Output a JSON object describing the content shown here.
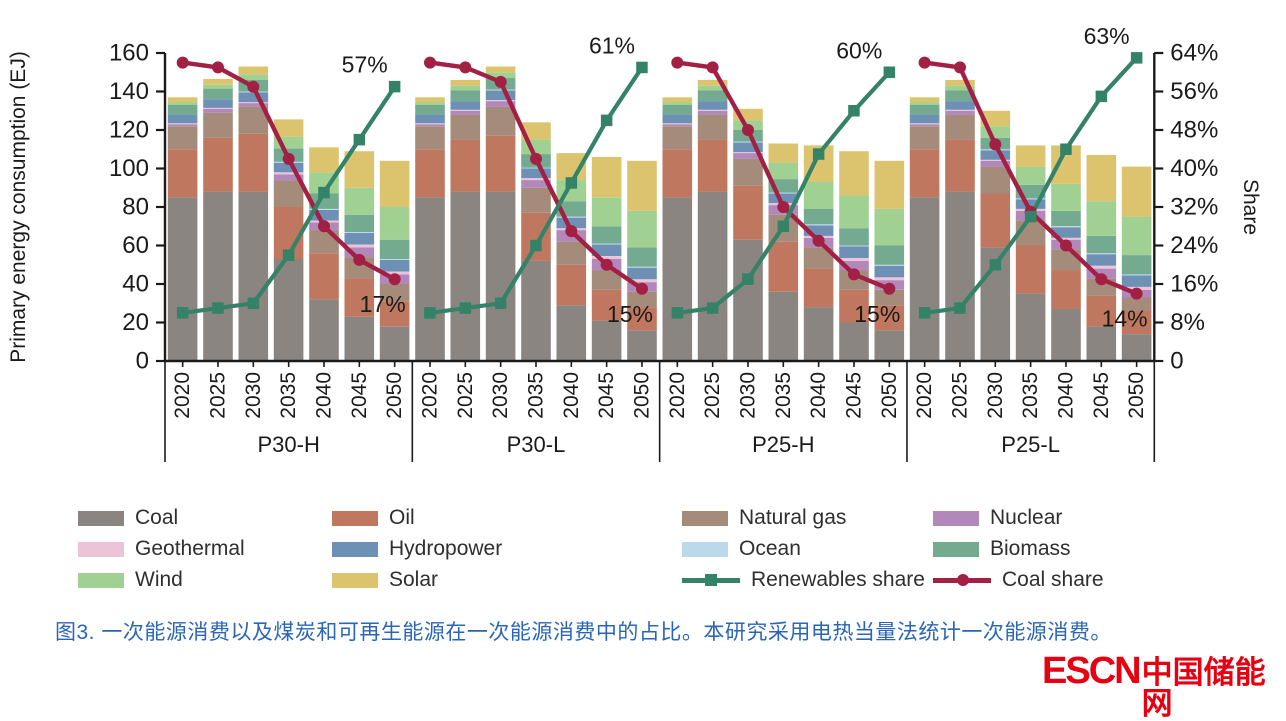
{
  "chart_data": {
    "type": "bar",
    "variant": "stacked-bars-with-dual-axis-share-lines",
    "title": "",
    "ylabel": "Primary energy consumption (EJ)",
    "y2label": "Share",
    "ylim": [
      0,
      160
    ],
    "y2lim": [
      0,
      64
    ],
    "y_ticks": [
      0,
      20,
      40,
      60,
      80,
      100,
      120,
      140,
      160
    ],
    "y2_tick_labels": [
      "0",
      "8%",
      "16%",
      "24%",
      "32%",
      "40%",
      "48%",
      "56%",
      "64%"
    ],
    "grid": false,
    "categories_years": [
      "2020",
      "2025",
      "2030",
      "2035",
      "2040",
      "2045",
      "2050"
    ],
    "series_order": [
      "Coal",
      "Oil",
      "Natural gas",
      "Nuclear",
      "Geothermal",
      "Hydropower",
      "Ocean",
      "Biomass",
      "Wind",
      "Solar"
    ],
    "units": "EJ",
    "groups": [
      {
        "name": "P30-H",
        "values": [
          [
            85,
            88,
            88,
            53,
            32,
            23,
            18
          ],
          [
            25,
            28,
            30,
            27,
            24,
            20,
            13
          ],
          [
            12,
            13,
            14,
            14,
            12,
            11,
            9
          ],
          [
            1,
            2,
            2,
            3,
            4,
            5,
            5
          ],
          [
            0.5,
            0.5,
            0.5,
            1,
            1,
            1.5,
            1.5
          ],
          [
            4.5,
            4.5,
            5,
            5,
            5.5,
            6,
            6
          ],
          [
            0,
            0,
            0.5,
            0.5,
            0.5,
            0.5,
            0.5
          ],
          [
            5,
            5.5,
            6,
            7,
            8,
            9,
            10
          ],
          [
            1.5,
            2,
            3,
            6,
            11,
            14,
            17
          ],
          [
            2.5,
            3,
            4,
            9,
            13,
            19,
            24
          ]
        ],
        "renewables_share_pct": [
          10,
          11,
          12,
          22,
          35,
          46,
          57
        ],
        "coal_share_pct": [
          62,
          61,
          57,
          42,
          28,
          21,
          17
        ],
        "end_labels": {
          "renewables": "57%",
          "coal": "17%"
        }
      },
      {
        "name": "P30-L",
        "values": [
          [
            85,
            88,
            88,
            52,
            29,
            21,
            16
          ],
          [
            25,
            27,
            29,
            25,
            21,
            16,
            12
          ],
          [
            12,
            13,
            15,
            13,
            12,
            10,
            8
          ],
          [
            1,
            2,
            3,
            4,
            6,
            6,
            5
          ],
          [
            0.5,
            0.5,
            0.5,
            1,
            1,
            1.5,
            1.5
          ],
          [
            4.5,
            4.5,
            5,
            5,
            5.5,
            6,
            6
          ],
          [
            0,
            0,
            0.5,
            0.5,
            0.5,
            0.5,
            0.5
          ],
          [
            5,
            5.5,
            6,
            7,
            8,
            9,
            10
          ],
          [
            1.5,
            2.5,
            3,
            7.5,
            11,
            15,
            19
          ],
          [
            2.5,
            3,
            3,
            9,
            14,
            21,
            26
          ]
        ],
        "renewables_share_pct": [
          10,
          11,
          12,
          24,
          37,
          50,
          61
        ],
        "coal_share_pct": [
          62,
          61,
          58,
          42,
          27,
          20,
          15
        ],
        "end_labels": {
          "renewables": "61%",
          "coal": "15%"
        }
      },
      {
        "name": "P25-H",
        "values": [
          [
            85,
            88,
            63,
            36,
            28,
            20,
            16
          ],
          [
            25,
            27,
            28,
            26,
            20,
            17,
            13
          ],
          [
            12,
            13,
            14,
            14,
            11,
            10,
            8
          ],
          [
            1,
            2,
            3,
            5,
            5,
            5,
            5
          ],
          [
            0.5,
            0.5,
            0.5,
            1,
            1,
            1.5,
            1.5
          ],
          [
            4.5,
            4.5,
            5,
            5,
            5.5,
            6,
            6
          ],
          [
            0,
            0,
            0.5,
            0.5,
            0.5,
            0.5,
            0.5
          ],
          [
            5,
            5.5,
            6,
            7,
            8,
            9,
            10
          ],
          [
            1.5,
            2.5,
            5,
            8.5,
            14,
            17,
            19
          ],
          [
            2.5,
            3,
            6,
            10,
            19,
            23,
            25
          ]
        ],
        "renewables_share_pct": [
          10,
          11,
          17,
          28,
          43,
          52,
          60
        ],
        "coal_share_pct": [
          62,
          61,
          48,
          32,
          25,
          18,
          15
        ],
        "end_labels": {
          "renewables": "60%",
          "coal": "15%"
        }
      },
      {
        "name": "P25-L",
        "values": [
          [
            85,
            88,
            59,
            35,
            27,
            18,
            14
          ],
          [
            25,
            27,
            28,
            25,
            20,
            16,
            12
          ],
          [
            12,
            13,
            14,
            13,
            11,
            9,
            7
          ],
          [
            1,
            2,
            3,
            5,
            5,
            5,
            4
          ],
          [
            0.5,
            0.5,
            0.5,
            1,
            1,
            1.5,
            1.5
          ],
          [
            4.5,
            4.5,
            5,
            5,
            5.5,
            6,
            6
          ],
          [
            0,
            0,
            0.5,
            0.5,
            0.5,
            0.5,
            0.5
          ],
          [
            5,
            5.5,
            6,
            7,
            8,
            9,
            10
          ],
          [
            1.5,
            2.5,
            6,
            9.5,
            14,
            18,
            20
          ],
          [
            2.5,
            3,
            8,
            11,
            20,
            24,
            26
          ]
        ],
        "renewables_share_pct": [
          10,
          11,
          20,
          30,
          44,
          55,
          63
        ],
        "coal_share_pct": [
          62,
          61,
          45,
          31,
          24,
          17,
          14
        ],
        "end_labels": {
          "renewables": "63%",
          "coal": "14%"
        }
      }
    ]
  },
  "colors": {
    "Coal": "#8B8582",
    "Oil": "#C0775F",
    "Natural gas": "#A58B7A",
    "Nuclear": "#B287B9",
    "Geothermal": "#EBC4D7",
    "Hydropower": "#6E90B5",
    "Ocean": "#BCD9E9",
    "Biomass": "#74AA90",
    "Wind": "#A0D192",
    "Solar": "#DCC46F",
    "renewables_line": "#348268",
    "coal_line": "#A32045",
    "axis": "#1a1a1a",
    "annotation": "#2b2b2b",
    "caption": "#2a66b8",
    "logo": "#e60012"
  },
  "legend": {
    "items": [
      {
        "label": "Coal",
        "type": "rect",
        "color_key": "Coal",
        "col": 0,
        "row": 0
      },
      {
        "label": "Oil",
        "type": "rect",
        "color_key": "Oil",
        "col": 1,
        "row": 0
      },
      {
        "label": "Natural gas",
        "type": "rect",
        "color_key": "Natural gas",
        "col": 2,
        "row": 0
      },
      {
        "label": "Nuclear",
        "type": "rect",
        "color_key": "Nuclear",
        "col": 3,
        "row": 0
      },
      {
        "label": "Geothermal",
        "type": "rect",
        "color_key": "Geothermal",
        "col": 0,
        "row": 1
      },
      {
        "label": "Hydropower",
        "type": "rect",
        "color_key": "Hydropower",
        "col": 1,
        "row": 1
      },
      {
        "label": "Ocean",
        "type": "rect",
        "color_key": "Ocean",
        "col": 2,
        "row": 1
      },
      {
        "label": "Biomass",
        "type": "rect",
        "color_key": "Biomass",
        "col": 3,
        "row": 1
      },
      {
        "label": "Wind",
        "type": "rect",
        "color_key": "Wind",
        "col": 0,
        "row": 2
      },
      {
        "label": "Solar",
        "type": "rect",
        "color_key": "Solar",
        "col": 1,
        "row": 2
      },
      {
        "label": "Renewables share",
        "type": "line-square",
        "color_key": "renewables_line",
        "col": 2,
        "row": 2
      },
      {
        "label": "Coal share",
        "type": "line-circle",
        "color_key": "coal_line",
        "col": 3,
        "row": 2
      }
    ]
  },
  "caption": {
    "text": "图3. 一次能源消费以及煤炭和可再生能源在一次能源消费中的占比。本研究采用电热当量法统计一次能源消费。"
  },
  "logo": {
    "text_en": "ESCN",
    "text_zh": "中国储能网"
  }
}
